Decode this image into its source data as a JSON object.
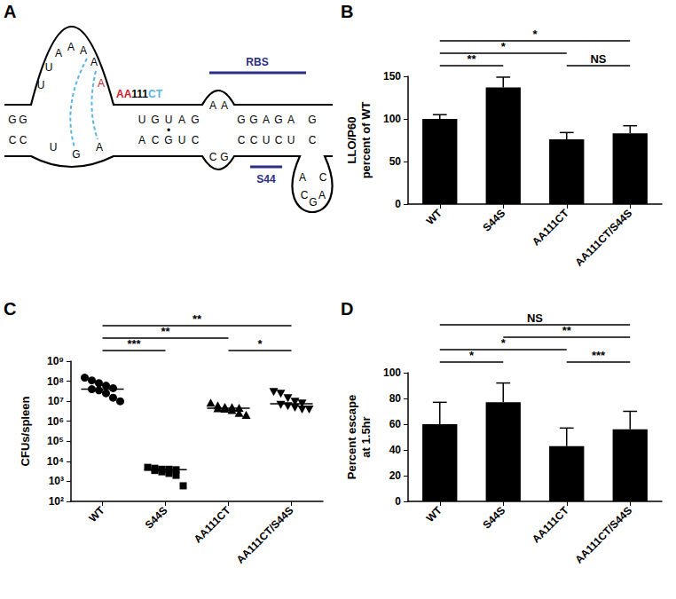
{
  "diagram": {
    "panel": "A",
    "left_stem": {
      "top": [
        "G",
        "G"
      ],
      "bottom": [
        "C",
        "C"
      ]
    },
    "loop": {
      "top": [
        "U",
        "U",
        "A",
        "A",
        "A",
        "A",
        {
          "text": "A",
          "color": "#d0202e"
        }
      ],
      "bottom": [
        "U",
        "G",
        "A"
      ]
    },
    "stem1": {
      "top": [
        "U",
        "G",
        "U",
        "A",
        "G"
      ],
      "bottom": [
        "A",
        "C",
        "G",
        "U",
        "C"
      ],
      "pair_mark": "•"
    },
    "bulge": {
      "top": [
        "A",
        "A"
      ],
      "bottom": [
        "C",
        "G"
      ]
    },
    "stem2": {
      "top": [
        "G",
        "G",
        "A",
        "G",
        "A"
      ],
      "bottom": [
        "C",
        "C",
        "U",
        "C",
        "U"
      ]
    },
    "end": {
      "top": [
        "G"
      ],
      "bottom": [
        "C"
      ]
    },
    "hairpin": [
      "A",
      "C",
      "G",
      "A",
      "C"
    ],
    "mutation": [
      {
        "text": "AA",
        "color": "#d0202e"
      },
      {
        "text": "111",
        "color": "#000000"
      },
      {
        "text": "CT",
        "color": "#5ab4e6"
      }
    ],
    "rbs": {
      "text": "RBS",
      "color": "#2c2d84"
    },
    "s44": {
      "text": "S44",
      "color": "#2c2d84"
    },
    "pairing_color": "#5ab4e6"
  },
  "chart_data": [
    {
      "panel": "B",
      "type": "bar",
      "categories": [
        "WT",
        "S44S",
        "AA111CT",
        "AA111CT/S44S"
      ],
      "values": [
        100,
        137,
        76,
        83
      ],
      "errors": [
        5,
        12,
        8,
        9
      ],
      "color": "#000000",
      "ylabel": [
        "LLO/P60",
        "percent of WT"
      ],
      "ylim": [
        0,
        150
      ],
      "yticks": [
        0,
        50,
        100,
        150
      ],
      "grid": false,
      "annotations": [
        {
          "from": "WT",
          "to": "S44S",
          "text": "**"
        },
        {
          "from": "AA111CT",
          "to": "AA111CT/S44S",
          "text": "NS"
        },
        {
          "from": "WT",
          "to": "AA111CT",
          "text": "*"
        },
        {
          "from": "WT",
          "to": "AA111CT/S44S",
          "text": "*"
        }
      ]
    },
    {
      "panel": "C",
      "type": "scatter",
      "categories": [
        "WT",
        "S44S",
        "AA111CT",
        "AA111CT/S44S"
      ],
      "values": [
        [
          150000000,
          110000000,
          80000000,
          60000000,
          45000000,
          40000000,
          35000000,
          25000000,
          15000000,
          10000000
        ],
        [
          5000,
          4500,
          4000,
          4000,
          3800,
          3500,
          3000,
          2500,
          2000,
          600
        ],
        [
          8000000,
          6000000,
          5000000,
          4800000,
          4500000,
          4300000,
          4000000,
          3500000,
          2500000,
          2000000
        ],
        [
          30000000,
          25000000,
          15000000,
          10000000,
          8000000,
          7000000,
          6000000,
          5000000,
          4000000,
          4000000
        ]
      ],
      "medians": [
        40000000,
        3800,
        4500000,
        7500000
      ],
      "markers": [
        "circle",
        "square",
        "triangle",
        "triangle-down"
      ],
      "color": "#000000",
      "ylabel": "CFUs/spleen",
      "log": "y",
      "ylim": [
        100,
        1000000000
      ],
      "yticks": [
        {
          "value": 100,
          "label": "10²"
        },
        {
          "value": 1000,
          "label": "10³"
        },
        {
          "value": 10000,
          "label": "10⁴"
        },
        {
          "value": 100000,
          "label": "10⁵"
        },
        {
          "value": 1000000,
          "label": "10⁶"
        },
        {
          "value": 10000000,
          "label": "10⁷"
        },
        {
          "value": 100000000,
          "label": "10⁸"
        },
        {
          "value": 1000000000,
          "label": "10⁹"
        }
      ],
      "grid": false,
      "annotations": [
        {
          "from": "WT",
          "to": "S44S",
          "text": "***"
        },
        {
          "from": "AA111CT",
          "to": "AA111CT/S44S",
          "text": "*"
        },
        {
          "from": "WT",
          "to": "AA111CT",
          "text": "**"
        },
        {
          "from": "WT",
          "to": "AA111CT/S44S",
          "text": "**"
        }
      ]
    },
    {
      "panel": "D",
      "type": "bar",
      "categories": [
        "WT",
        "S44S",
        "AA111CT",
        "AA111CT/S44S"
      ],
      "values": [
        60,
        77,
        43,
        56
      ],
      "errors": [
        17,
        15,
        14,
        14
      ],
      "color": "#000000",
      "ylabel": [
        "Percent escape",
        "at 1.5hr"
      ],
      "ylim": [
        0,
        100
      ],
      "yticks": [
        0,
        20,
        40,
        60,
        80,
        100
      ],
      "grid": false,
      "annotations": [
        {
          "from": "WT",
          "to": "S44S",
          "text": "*"
        },
        {
          "from": "AA111CT",
          "to": "AA111CT/S44S",
          "text": "***"
        },
        {
          "from": "WT",
          "to": "AA111CT",
          "text": "*"
        },
        {
          "from": "S44S",
          "to": "AA111CT/S44S",
          "text": "**"
        },
        {
          "from": "WT",
          "to": "AA111CT/S44S",
          "text": "NS"
        }
      ]
    }
  ]
}
